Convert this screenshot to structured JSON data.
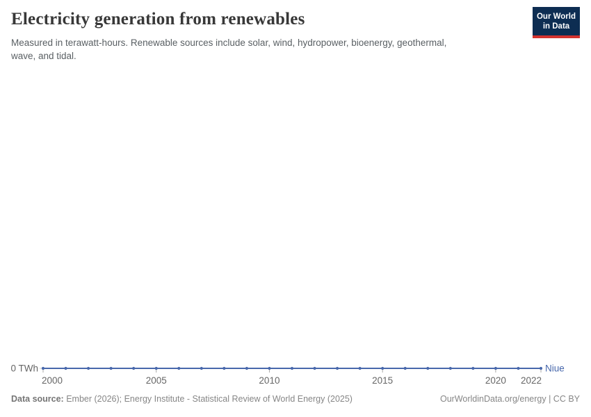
{
  "header": {
    "title": "Electricity generation from renewables",
    "subtitle": "Measured in terawatt-hours. Renewable sources include solar, wind, hydropower, bioenergy, geothermal, wave, and tidal."
  },
  "logo": {
    "line1": "Our World",
    "line2": "in Data",
    "bg_color": "#0d2d52",
    "accent_color": "#d4332f"
  },
  "chart_data": {
    "type": "line",
    "title": "Electricity generation from renewables",
    "xlabel": "",
    "ylabel": "TWh",
    "x": [
      2000,
      2001,
      2002,
      2003,
      2004,
      2005,
      2006,
      2007,
      2008,
      2009,
      2010,
      2011,
      2012,
      2013,
      2014,
      2015,
      2016,
      2017,
      2018,
      2019,
      2020,
      2021,
      2022
    ],
    "series": [
      {
        "name": "Niue",
        "color": "#4868ac",
        "values": [
          0,
          0,
          0,
          0,
          0,
          0,
          0,
          0,
          0,
          0,
          0,
          0,
          0,
          0,
          0,
          0,
          0,
          0,
          0,
          0,
          0,
          0,
          0
        ]
      }
    ],
    "x_ticks": [
      {
        "value": 2000,
        "label": "2000"
      },
      {
        "value": 2005,
        "label": "2005"
      },
      {
        "value": 2010,
        "label": "2010"
      },
      {
        "value": 2015,
        "label": "2015"
      },
      {
        "value": 2020,
        "label": "2020"
      },
      {
        "value": 2022,
        "label": "2022"
      }
    ],
    "y_ticks": [
      {
        "value": 0,
        "label": "0 TWh"
      }
    ],
    "xlim": [
      2000,
      2022
    ],
    "ylim": [
      0,
      0
    ],
    "grid": false,
    "legend": "end-of-line-label",
    "axis_text_color": "#666666",
    "tick_color": "#a9a9a9",
    "axis_line_color": "#c6c6c6",
    "marker": "circle"
  },
  "footer": {
    "data_source_label": "Data source:",
    "data_source_text": " Ember (2026); Energy Institute - Statistical Review of World Energy (2025)",
    "credit": "OurWorldinData.org/energy | CC BY"
  }
}
